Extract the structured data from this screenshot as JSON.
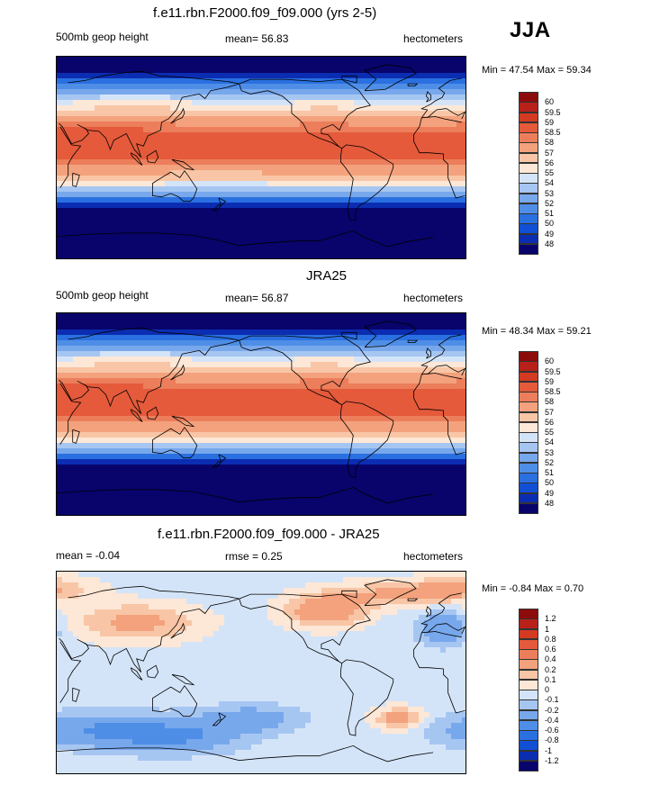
{
  "season": "JJA",
  "panels": [
    {
      "title": "f.e11.rbn.F2000.f09_f09.000 (yrs 2-5)",
      "left_label": "500mb geop height",
      "center_label": "mean=  56.83",
      "right_label": "hectometers",
      "minmax": "Min =  47.54 Max =  59.34",
      "field": "model",
      "colorbar": {
        "colors": [
          "#08046b",
          "#0b2db2",
          "#1150d4",
          "#2a70e0",
          "#4f8ee6",
          "#78a8ec",
          "#a6c6f2",
          "#d4e4f8",
          "#fde7d6",
          "#f8c6a6",
          "#f3a27d",
          "#ec7e5b",
          "#e45a3b",
          "#d43a22",
          "#b8211a",
          "#8c0b0b"
        ],
        "labels": [
          "48",
          "49",
          "50",
          "51",
          "52",
          "53",
          "54",
          "55",
          "56",
          "57",
          "58",
          "58.5",
          "59",
          "59.5",
          "60"
        ]
      }
    },
    {
      "title": "JRA25",
      "left_label": "500mb geop height",
      "center_label": "mean=  56.87",
      "right_label": "hectometers",
      "minmax": "Min =  48.34 Max =  59.21",
      "field": "obs",
      "colorbar": {
        "colors": [
          "#08046b",
          "#0b2db2",
          "#1150d4",
          "#2a70e0",
          "#4f8ee6",
          "#78a8ec",
          "#a6c6f2",
          "#d4e4f8",
          "#fde7d6",
          "#f8c6a6",
          "#f3a27d",
          "#ec7e5b",
          "#e45a3b",
          "#d43a22",
          "#b8211a",
          "#8c0b0b"
        ],
        "labels": [
          "48",
          "49",
          "50",
          "51",
          "52",
          "53",
          "54",
          "55",
          "56",
          "57",
          "58",
          "58.5",
          "59",
          "59.5",
          "60"
        ]
      }
    },
    {
      "title": "f.e11.rbn.F2000.f09_f09.000 - JRA25",
      "left_label": "mean =  -0.04",
      "center_label": "rmse =   0.25",
      "right_label": "hectometers",
      "minmax": "Min =  -0.84 Max =   0.70",
      "field": "diff",
      "colorbar": {
        "colors": [
          "#08046b",
          "#0b2db2",
          "#1150d4",
          "#2a70e0",
          "#4f8ee6",
          "#78a8ec",
          "#a6c6f2",
          "#d4e4f8",
          "#fde7d6",
          "#f8c6a6",
          "#f3a27d",
          "#ec7e5b",
          "#e45a3b",
          "#d43a22",
          "#b8211a",
          "#8c0b0b"
        ],
        "labels": [
          "-1.2",
          "-1",
          "-0.8",
          "-0.6",
          "-0.4",
          "-0.2",
          "-0.1",
          "0",
          "0.1",
          "0.2",
          "0.4",
          "0.6",
          "0.8",
          "1",
          "1.2"
        ]
      }
    }
  ]
}
